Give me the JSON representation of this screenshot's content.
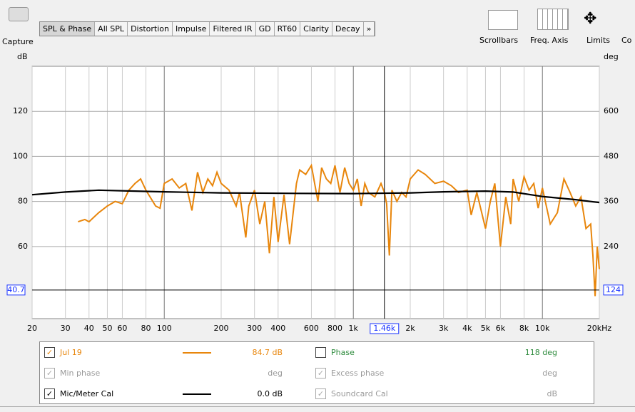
{
  "toolbar": {
    "capture": "Capture",
    "tabs": [
      "SPL & Phase",
      "All SPL",
      "Distortion",
      "Impulse",
      "Filtered IR",
      "GD",
      "RT60",
      "Clarity",
      "Decay",
      "»"
    ],
    "tools": [
      "Scrollbars",
      "Freq. Axis",
      "Limits",
      "Co"
    ]
  },
  "chart_data": {
    "type": "line",
    "ylabel": "dB",
    "y2label": "deg",
    "log_x": true,
    "grid": true,
    "xlim": [
      20,
      20000
    ],
    "ylim": [
      28,
      140
    ],
    "y2lim": [
      48,
      720
    ],
    "xticks": [
      20,
      30,
      40,
      50,
      60,
      80,
      100,
      200,
      300,
      400,
      600,
      800,
      {
        "value": 1000,
        "label": "1k"
      },
      {
        "value": 2000,
        "label": "2k"
      },
      {
        "value": 3000,
        "label": "3k"
      },
      {
        "value": 4000,
        "label": "4k"
      },
      {
        "value": 5000,
        "label": "5k"
      },
      {
        "value": 6000,
        "label": "6k"
      },
      {
        "value": 8000,
        "label": "8k"
      },
      {
        "value": 10000,
        "label": "10k"
      },
      {
        "value": 20000,
        "label": "20kHz"
      }
    ],
    "yticks": [
      60,
      80,
      100,
      120
    ],
    "y2ticks": [
      240,
      360,
      480,
      600
    ],
    "cursor": {
      "x": {
        "value": 1460,
        "label": "1.46k"
      },
      "y": 40.7,
      "y2": 124
    },
    "series": [
      {
        "name": "Jul 19",
        "color": "#e8860c",
        "x": [
          35,
          38,
          40,
          45,
          50,
          55,
          60,
          65,
          70,
          75,
          80,
          90,
          95,
          100,
          110,
          120,
          130,
          140,
          150,
          160,
          170,
          180,
          190,
          200,
          220,
          240,
          250,
          270,
          280,
          300,
          320,
          340,
          360,
          380,
          400,
          430,
          460,
          500,
          520,
          560,
          600,
          650,
          680,
          720,
          760,
          800,
          850,
          900,
          950,
          1000,
          1050,
          1100,
          1150,
          1200,
          1300,
          1400,
          1460,
          1500,
          1550,
          1600,
          1700,
          1800,
          1900,
          2000,
          2200,
          2400,
          2700,
          3000,
          3300,
          3600,
          4000,
          4200,
          4500,
          5000,
          5300,
          5600,
          6000,
          6400,
          6800,
          7000,
          7500,
          8000,
          8500,
          9000,
          9500,
          10000,
          11000,
          12000,
          13000,
          14000,
          15000,
          16000,
          17000,
          18000,
          18500,
          19000,
          19500,
          20000
        ],
        "values": [
          71,
          72,
          71,
          75,
          78,
          80,
          79,
          85,
          88,
          90,
          85,
          78,
          77,
          88,
          90,
          86,
          88,
          76,
          93,
          84,
          90,
          87,
          93,
          88,
          85,
          78,
          84,
          64,
          78,
          85,
          70,
          80,
          57,
          82,
          62,
          83,
          61,
          88,
          94,
          92,
          96,
          80,
          95,
          90,
          88,
          96,
          84,
          95,
          88,
          85,
          90,
          78,
          88,
          84,
          82,
          88,
          84,
          79,
          56,
          85,
          80,
          84,
          82,
          90,
          94,
          92,
          88,
          89,
          87,
          84,
          85,
          74,
          84,
          68,
          80,
          88,
          60,
          82,
          70,
          90,
          80,
          91,
          85,
          88,
          77,
          86,
          70,
          75,
          90,
          84,
          78,
          82,
          68,
          70,
          56,
          38,
          60,
          50
        ]
      },
      {
        "name": "Mic/Meter Cal",
        "color": "#000000",
        "x": [
          20,
          30,
          45,
          70,
          100,
          200,
          500,
          1000,
          2000,
          3000,
          5000,
          7000,
          10000,
          15000,
          20000
        ],
        "values": [
          83,
          84.2,
          85,
          84.6,
          84.3,
          83.8,
          83.6,
          83.5,
          83.8,
          84.3,
          84.6,
          84.2,
          82.2,
          80.8,
          79.5
        ]
      }
    ]
  },
  "legend": {
    "rows": [
      {
        "left": {
          "label": "Jul 19",
          "value": "84.7 dB"
        },
        "right": {
          "label": "Phase",
          "value": "118 deg"
        }
      },
      {
        "left": {
          "label": "Min phase",
          "value": "deg"
        },
        "right": {
          "label": "Excess phase",
          "value": "deg"
        }
      },
      {
        "left": {
          "label": "Mic/Meter Cal",
          "value": "0.0 dB"
        },
        "right": {
          "label": "Soundcard Cal",
          "value": "dB"
        }
      }
    ]
  }
}
